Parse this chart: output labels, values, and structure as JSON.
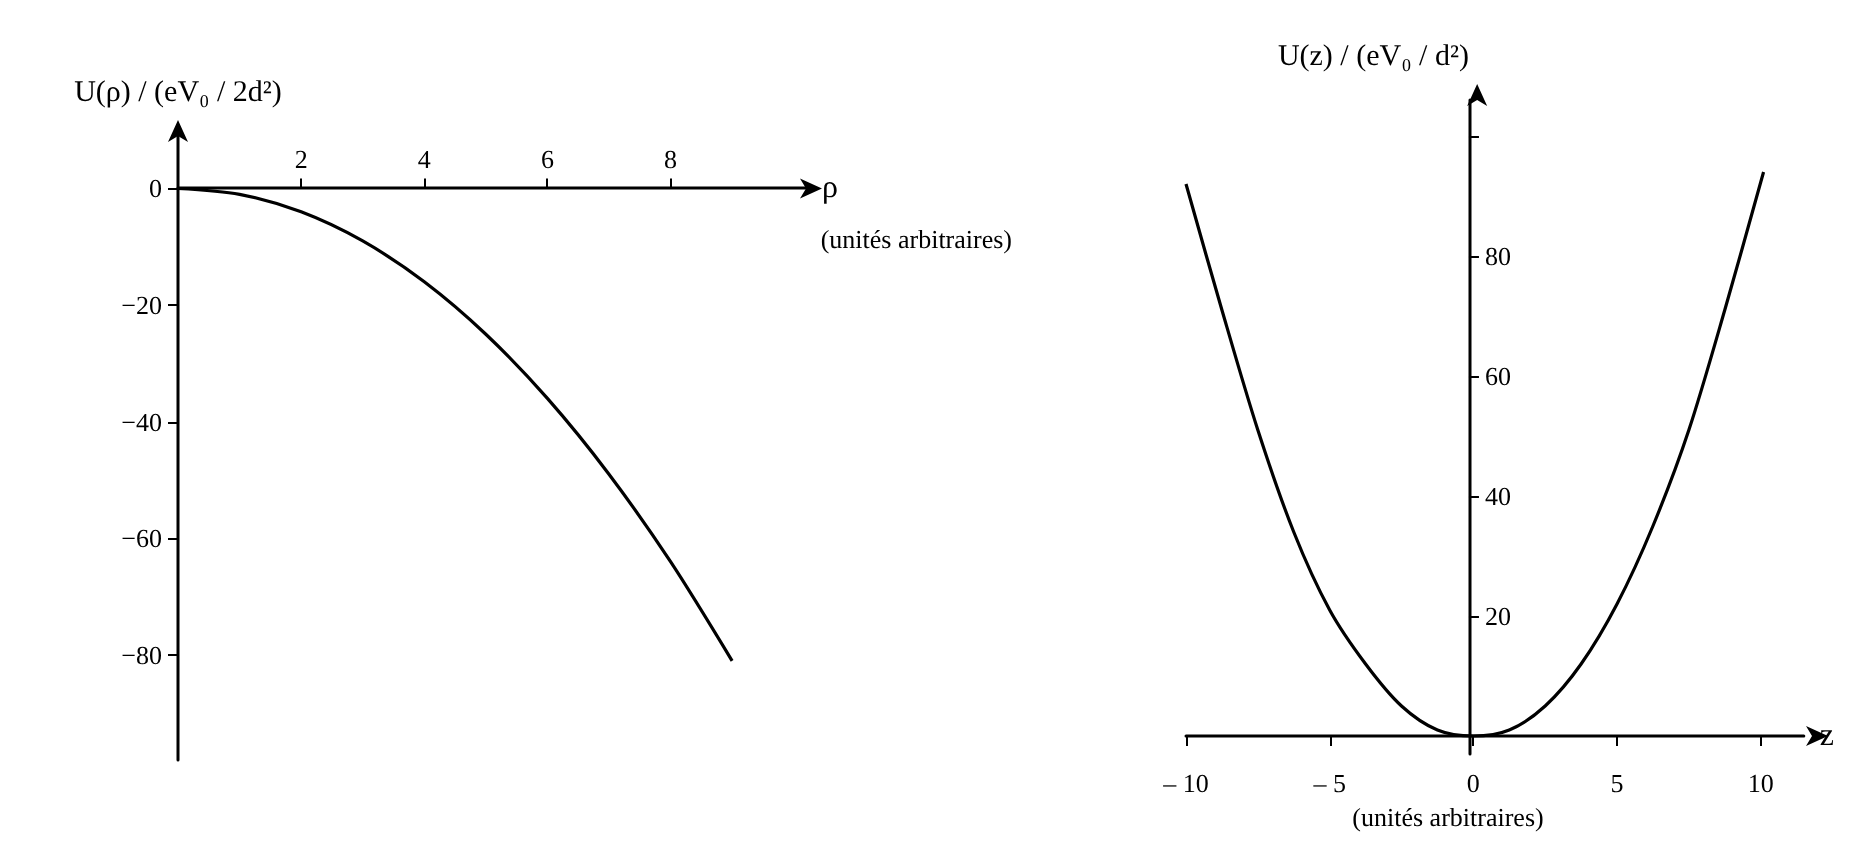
{
  "chart_data": [
    {
      "type": "line",
      "ylabel": "U(ρ) / (eV₀ / 2d²)",
      "xlabel": "ρ",
      "annotations": [
        "(unités arbitraires)"
      ],
      "x": [
        0,
        1,
        2,
        3,
        4,
        5,
        6,
        7,
        8,
        9
      ],
      "series": [
        {
          "color": "#000000",
          "values": [
            0,
            -1,
            -4,
            -9,
            -16,
            -25,
            -36,
            -49,
            -64,
            -81
          ]
        }
      ],
      "xlim": [
        0,
        10.2
      ],
      "xticks": [
        2,
        4,
        6,
        8
      ],
      "ylim": [
        -98,
        9
      ],
      "yticks": [
        0,
        {
          "value": -20,
          "label": "−20"
        },
        {
          "value": -40,
          "label": "−40"
        },
        {
          "value": -60,
          "label": "−60"
        },
        {
          "value": -80,
          "label": "−80"
        }
      ],
      "grid": false,
      "marker": "none",
      "line_style": "solid"
    },
    {
      "type": "line",
      "ylabel": "U(z) / (eV₀ / d²)",
      "xlabel": "z",
      "annotations": [
        "(unités arbitraires)"
      ],
      "x": [
        -10,
        -8.75,
        -7.5,
        -6.25,
        -5,
        -3.75,
        -2.5,
        -1.25,
        0,
        1.25,
        2.5,
        3.75,
        5,
        6.25,
        7.5,
        8.75,
        10.1
      ],
      "series": [
        {
          "color": "#000000",
          "values": [
            92,
            71,
            51,
            34,
            21,
            12,
            5,
            1,
            0,
            1,
            5,
            12,
            22,
            35,
            51,
            71,
            94
          ]
        }
      ],
      "xlim": [
        -10,
        11.5
      ],
      "xticks": [
        {
          "value": -10,
          "label": "– 10"
        },
        {
          "value": -5,
          "label": "– 5"
        },
        0,
        5,
        10
      ],
      "ylim": [
        -3,
        106
      ],
      "yticks": [
        20,
        40,
        60,
        80,
        {
          "value": 100,
          "label": null
        }
      ],
      "grid": false,
      "marker": "none",
      "line_style": "solid"
    }
  ]
}
